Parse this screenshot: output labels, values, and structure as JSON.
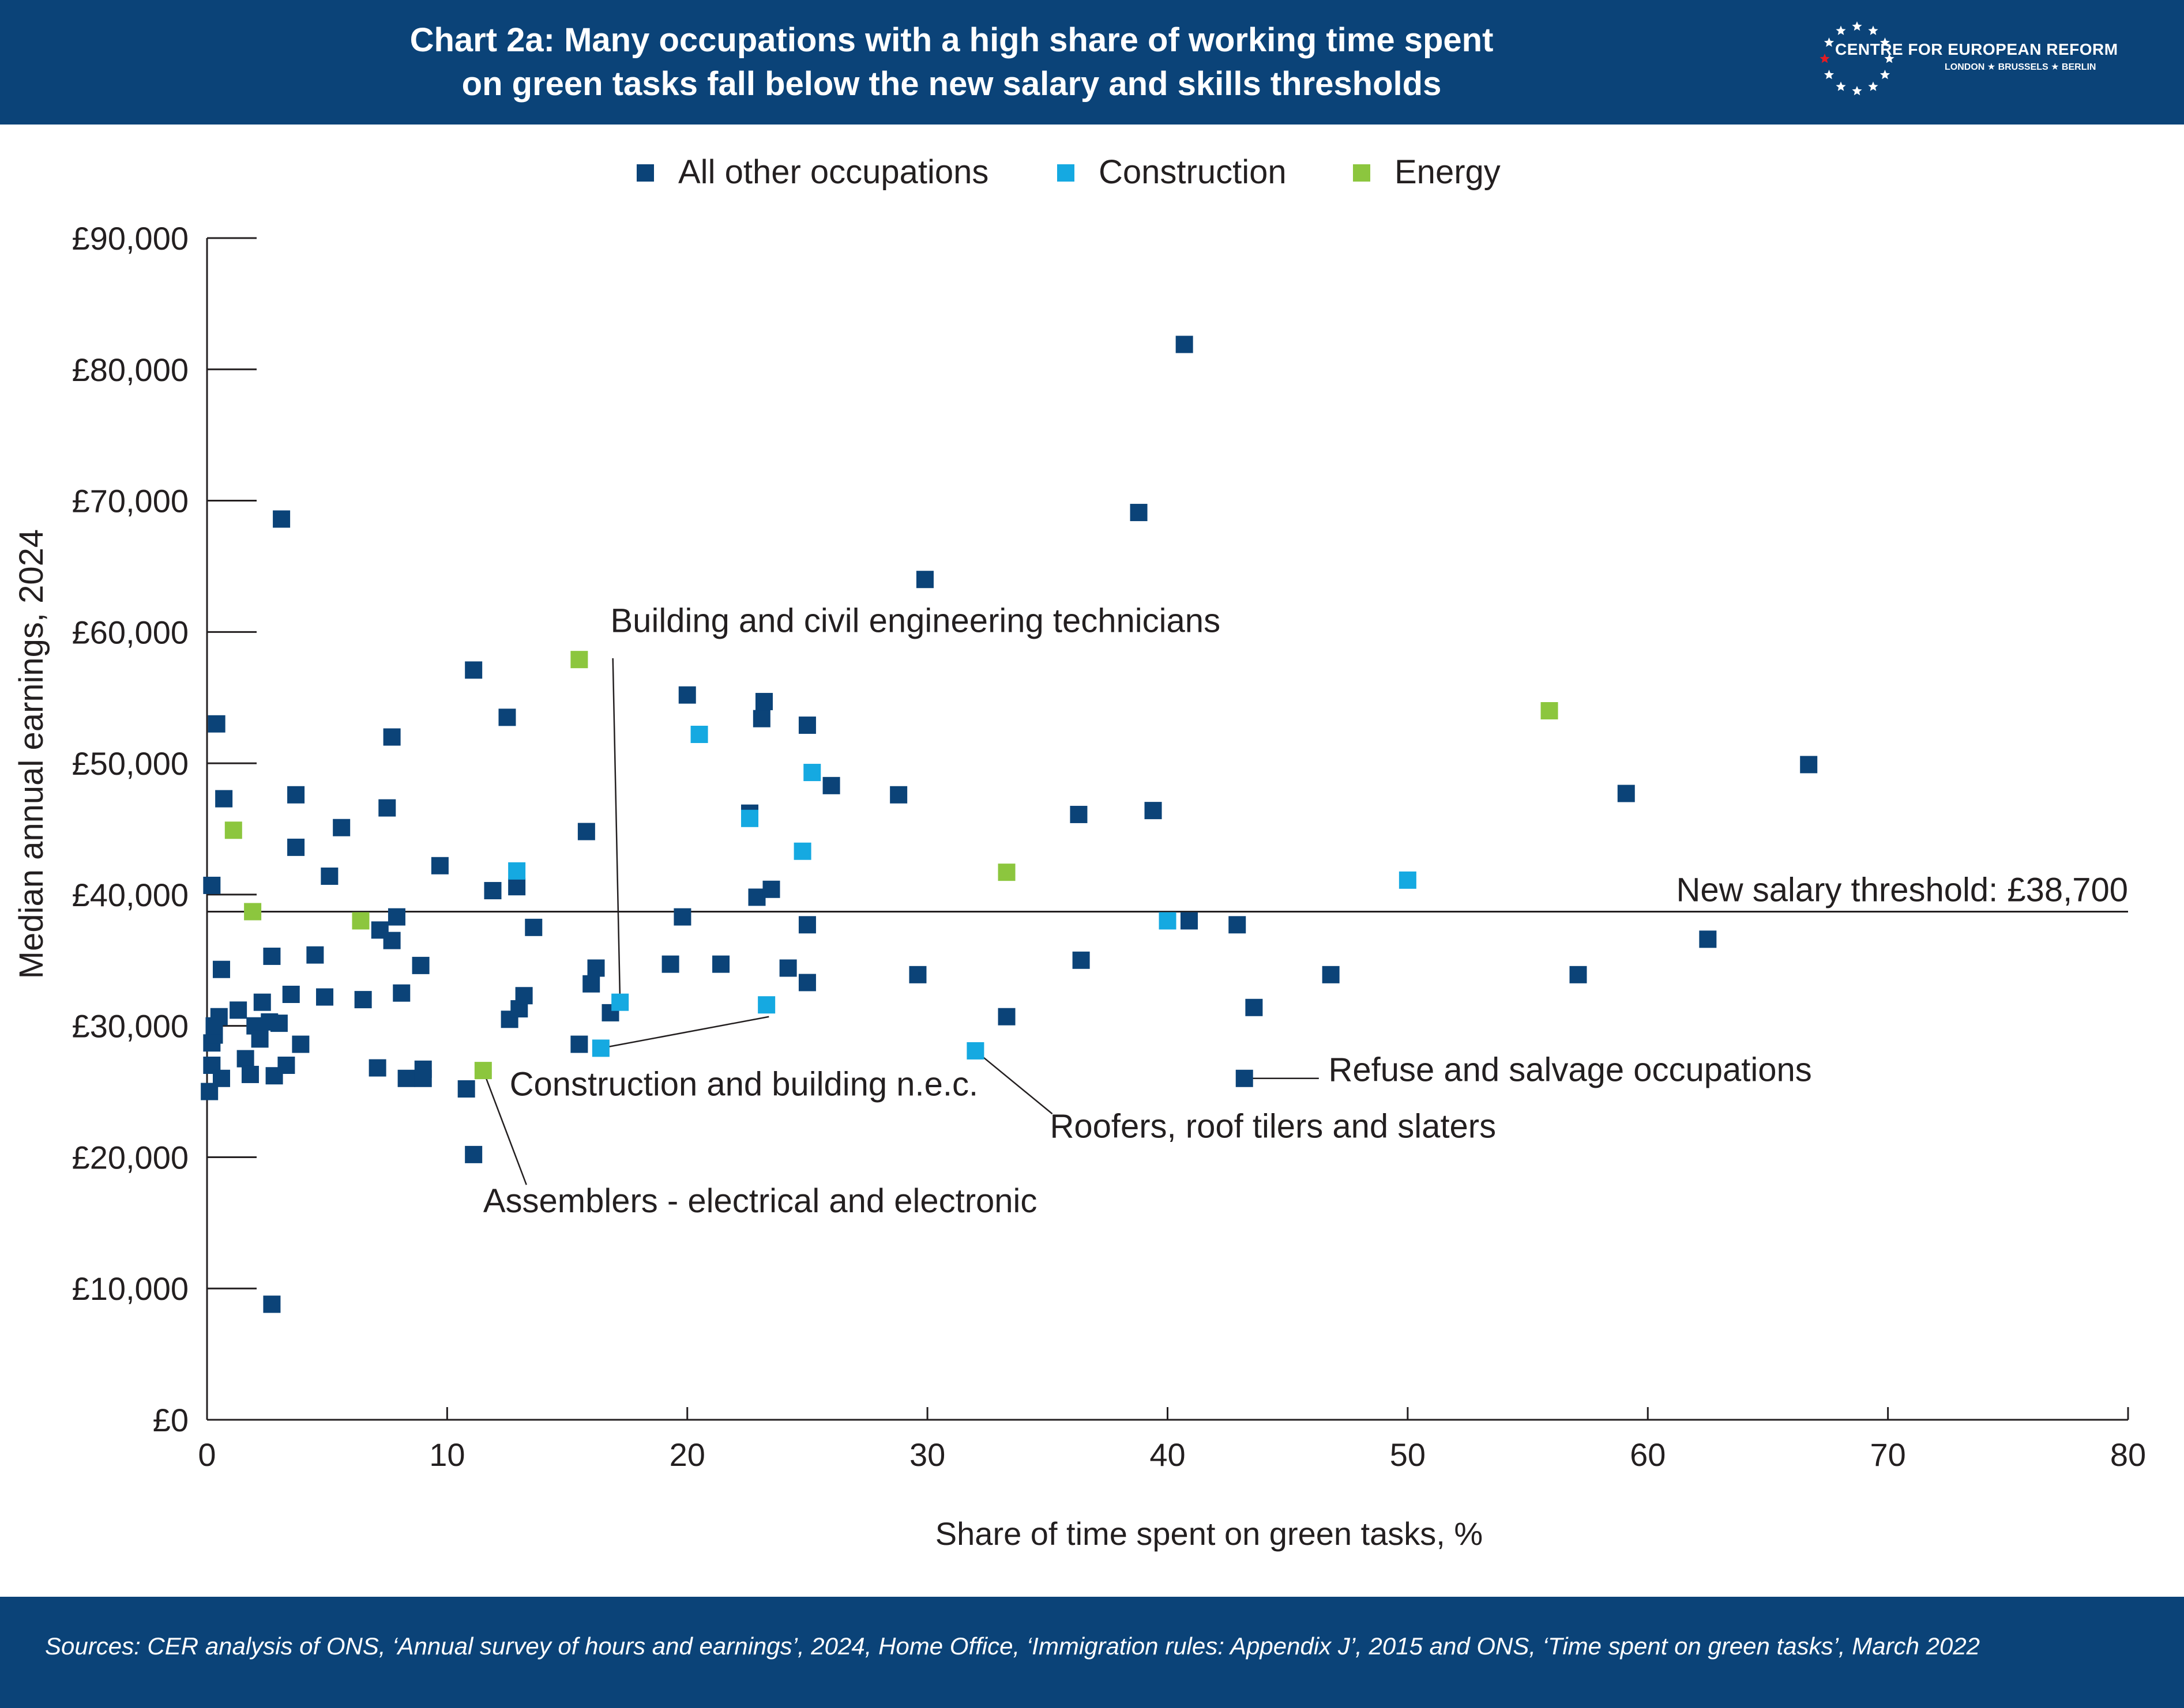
{
  "header": {
    "title_line1": "Chart 2a: Many occupations with a high share of working time spent",
    "title_line2": "on green tasks fall below the new salary and skills thresholds",
    "logo_name": "CENTRE FOR EUROPEAN REFORM",
    "logo_cities": "LONDON ★ BRUSSELS ★ BERLIN"
  },
  "footer": {
    "sources": "Sources: CER analysis of ONS, ‘Annual survey of hours and earnings’, 2024, Home Office, ‘Immigration rules: Appendix J’, 2015 and ONS, ‘Time spent on green tasks’, March 2022"
  },
  "colors": {
    "header_bg": "#0b4378",
    "all_other": "#0b4378",
    "construction": "#15a9e1",
    "energy": "#8cc63e"
  },
  "chart_data": {
    "type": "scatter",
    "xlabel": "Share of time spent on green tasks, %",
    "ylabel": "Median annual earnings, 2024",
    "xlim": [
      0,
      80
    ],
    "ylim": [
      0,
      90000
    ],
    "x_ticks": [
      0,
      10,
      20,
      30,
      40,
      50,
      60,
      70,
      80
    ],
    "y_ticks": [
      0,
      10000,
      20000,
      30000,
      40000,
      50000,
      60000,
      70000,
      80000,
      90000
    ],
    "y_tick_labels": [
      "£0",
      "£10,000",
      "£20,000",
      "£30,000",
      "£40,000",
      "£50,000",
      "£60,000",
      "£70,000",
      "£80,000",
      "£90,000"
    ],
    "grid": false,
    "legend_position": "top-center",
    "threshold": {
      "y": 38700,
      "label": "New salary threshold: £38,700"
    },
    "series": [
      {
        "name": "All other occupations",
        "color": "#0b4378",
        "points": [
          [
            0.1,
            25000
          ],
          [
            0.2,
            27000
          ],
          [
            0.2,
            28700
          ],
          [
            0.3,
            29300
          ],
          [
            0.3,
            30000
          ],
          [
            0.2,
            40700
          ],
          [
            0.4,
            53000
          ],
          [
            0.5,
            30700
          ],
          [
            0.6,
            26000
          ],
          [
            0.6,
            34300
          ],
          [
            0.7,
            47300
          ],
          [
            1.3,
            31200
          ],
          [
            1.6,
            27500
          ],
          [
            1.8,
            26300
          ],
          [
            2.0,
            30000
          ],
          [
            2.2,
            29000
          ],
          [
            2.3,
            31800
          ],
          [
            2.6,
            30300
          ],
          [
            2.7,
            35300
          ],
          [
            2.8,
            26200
          ],
          [
            3.0,
            30200
          ],
          [
            3.1,
            68600
          ],
          [
            3.3,
            27000
          ],
          [
            3.5,
            32400
          ],
          [
            3.7,
            47600
          ],
          [
            3.7,
            43600
          ],
          [
            3.9,
            28600
          ],
          [
            2.7,
            8800
          ],
          [
            4.5,
            35400
          ],
          [
            4.9,
            32200
          ],
          [
            5.1,
            41400
          ],
          [
            5.6,
            45100
          ],
          [
            6.5,
            32000
          ],
          [
            7.1,
            26800
          ],
          [
            7.2,
            37300
          ],
          [
            7.5,
            46600
          ],
          [
            7.7,
            36500
          ],
          [
            7.7,
            52000
          ],
          [
            7.9,
            38300
          ],
          [
            8.1,
            32500
          ],
          [
            8.3,
            26000
          ],
          [
            8.9,
            34600
          ],
          [
            9.0,
            26700
          ],
          [
            9.0,
            26000
          ],
          [
            9.7,
            42200
          ],
          [
            10.8,
            25200
          ],
          [
            11.1,
            20200
          ],
          [
            11.1,
            57100
          ],
          [
            11.9,
            40300
          ],
          [
            12.5,
            53500
          ],
          [
            12.6,
            30500
          ],
          [
            12.9,
            40600
          ],
          [
            13.0,
            31300
          ],
          [
            13.2,
            32300
          ],
          [
            13.6,
            37500
          ],
          [
            15.5,
            28600
          ],
          [
            15.8,
            44800
          ],
          [
            16.0,
            33200
          ],
          [
            16.2,
            34400
          ],
          [
            16.8,
            31000
          ],
          [
            19.3,
            34700
          ],
          [
            19.8,
            38300
          ],
          [
            20.0,
            55200
          ],
          [
            21.4,
            34700
          ],
          [
            22.6,
            46200
          ],
          [
            22.9,
            39800
          ],
          [
            23.1,
            53400
          ],
          [
            23.2,
            54700
          ],
          [
            23.5,
            40400
          ],
          [
            24.2,
            34400
          ],
          [
            25.0,
            37700
          ],
          [
            25.0,
            52900
          ],
          [
            25.0,
            33300
          ],
          [
            26.0,
            48300
          ],
          [
            28.8,
            47600
          ],
          [
            29.6,
            33900
          ],
          [
            29.9,
            64000
          ],
          [
            33.3,
            30700
          ],
          [
            36.3,
            46100
          ],
          [
            36.4,
            35000
          ],
          [
            38.8,
            69100
          ],
          [
            39.4,
            46400
          ],
          [
            40.7,
            81900
          ],
          [
            40.9,
            38000
          ],
          [
            42.9,
            37700
          ],
          [
            43.6,
            31400
          ],
          [
            43.2,
            26000
          ],
          [
            46.8,
            33900
          ],
          [
            57.1,
            33900
          ],
          [
            59.1,
            47700
          ],
          [
            62.5,
            36600
          ],
          [
            66.7,
            49900
          ]
        ]
      },
      {
        "name": "Construction",
        "color": "#15a9e1",
        "points": [
          [
            12.9,
            41800
          ],
          [
            16.4,
            28300
          ],
          [
            17.2,
            31800
          ],
          [
            20.5,
            52200
          ],
          [
            22.6,
            45800
          ],
          [
            23.3,
            31600
          ],
          [
            24.8,
            43300
          ],
          [
            25.2,
            49300
          ],
          [
            32.0,
            28100
          ],
          [
            40.0,
            38000
          ],
          [
            50.0,
            41100
          ]
        ]
      },
      {
        "name": "Energy",
        "color": "#8cc63e",
        "points": [
          [
            1.1,
            44900
          ],
          [
            1.9,
            38700
          ],
          [
            6.4,
            38000
          ],
          [
            11.5,
            26600
          ],
          [
            15.5,
            57900
          ],
          [
            33.3,
            41700
          ],
          [
            55.9,
            54000
          ]
        ]
      }
    ],
    "annotations": [
      {
        "text": "Building and civil engineering technicians",
        "point": [
          17.2,
          31800
        ],
        "text_anchor_pt": [
          16.9,
          58000
        ],
        "label_pos": [
          16.8,
          60000
        ],
        "align": "start"
      },
      {
        "text": "Construction and building n.e.c.",
        "point": [
          16.4,
          28300
        ],
        "text_anchor_pt": [
          23.4,
          30700
        ],
        "label_pos": [
          12.6,
          24700
        ],
        "align": "start"
      },
      {
        "text": "Assemblers - electrical and electronic",
        "point": [
          11.5,
          26600
        ],
        "text_anchor_pt": [
          13.3,
          17900
        ],
        "label_pos": [
          11.5,
          15800
        ],
        "align": "start"
      },
      {
        "text": "Roofers, roof tilers and slaters",
        "point": [
          32.0,
          28100
        ],
        "text_anchor_pt": [
          35.2,
          23300
        ],
        "label_pos": [
          35.1,
          21500
        ],
        "align": "start"
      },
      {
        "text": "Refuse and salvage occupations",
        "point": [
          43.2,
          26000
        ],
        "text_anchor_pt": [
          46.3,
          26000
        ],
        "label_pos": [
          46.7,
          25800
        ],
        "align": "start"
      }
    ]
  }
}
